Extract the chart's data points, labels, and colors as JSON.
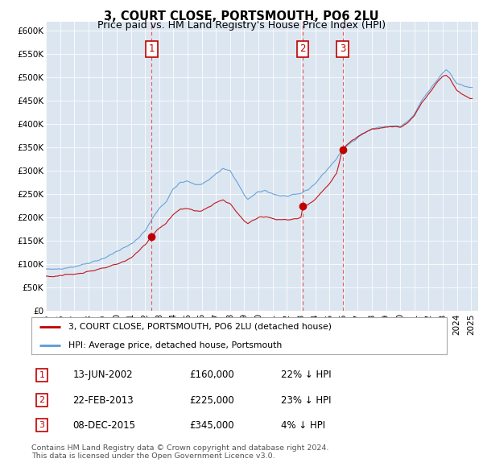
{
  "title": "3, COURT CLOSE, PORTSMOUTH, PO6 2LU",
  "subtitle": "Price paid vs. HM Land Registry's House Price Index (HPI)",
  "legend_line1": "3, COURT CLOSE, PORTSMOUTH, PO6 2LU (detached house)",
  "legend_line2": "HPI: Average price, detached house, Portsmouth",
  "footer": "Contains HM Land Registry data © Crown copyright and database right 2024.\nThis data is licensed under the Open Government Licence v3.0.",
  "sale_events": [
    {
      "num": 1,
      "date": "13-JUN-2002",
      "price": 160000,
      "pct": "22%",
      "dir": "↓",
      "x_year": 2002.46
    },
    {
      "num": 2,
      "date": "22-FEB-2013",
      "price": 225000,
      "pct": "23%",
      "dir": "↓",
      "x_year": 2013.13
    },
    {
      "num": 3,
      "date": "08-DEC-2015",
      "price": 345000,
      "pct": "4%",
      "dir": "↓",
      "x_year": 2015.93
    }
  ],
  "hpi_color": "#5b9bd5",
  "price_color": "#c00000",
  "dashed_line_color_1": "#e74c3c",
  "dashed_line_color_3": "#e74c3c",
  "background_chart": "#dce6f1",
  "background_fig": "#ffffff",
  "ylim": [
    0,
    620000
  ],
  "xlim_start": 1995.0,
  "xlim_end": 2025.5,
  "yticks": [
    0,
    50000,
    100000,
    150000,
    200000,
    250000,
    300000,
    350000,
    400000,
    450000,
    500000,
    550000,
    600000
  ],
  "ytick_labels": [
    "£0",
    "£50K",
    "£100K",
    "£150K",
    "£200K",
    "£250K",
    "£300K",
    "£350K",
    "£400K",
    "£450K",
    "£500K",
    "£550K",
    "£600K"
  ]
}
